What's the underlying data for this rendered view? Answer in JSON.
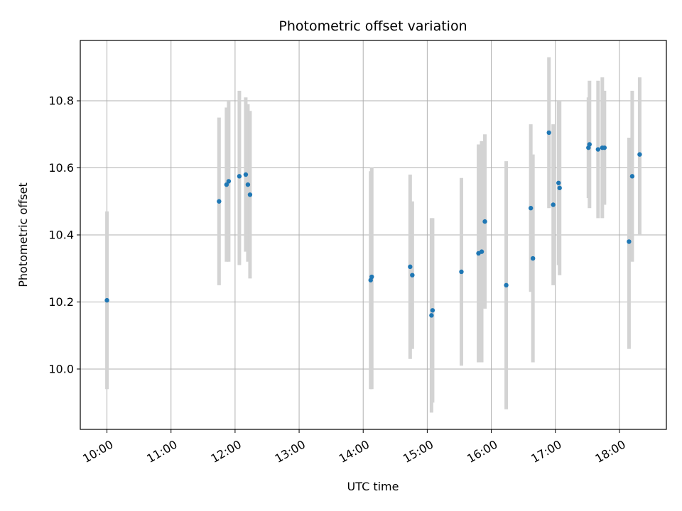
{
  "chart_data": {
    "type": "scatter",
    "title": "Photometric offset variation",
    "xlabel": "UTC time",
    "ylabel": "Photometric offset",
    "x_is_time": true,
    "xlim": [
      "09:35",
      "18:44"
    ],
    "ylim": [
      9.82,
      10.98
    ],
    "x_ticks": [
      "10:00",
      "11:00",
      "12:00",
      "13:00",
      "14:00",
      "15:00",
      "16:00",
      "17:00",
      "18:00"
    ],
    "y_ticks": [
      10.0,
      10.2,
      10.4,
      10.6,
      10.8
    ],
    "y_tick_labels": [
      "10.0",
      "10.2",
      "10.4",
      "10.6",
      "10.8"
    ],
    "grid": true,
    "point_color": "#1f77b4",
    "errorbar_color": "#d3d3d3",
    "points": [
      {
        "t": "10:00",
        "y": 10.205,
        "lo": 9.94,
        "hi": 10.47
      },
      {
        "t": "11:45",
        "y": 10.5,
        "lo": 10.25,
        "hi": 10.75
      },
      {
        "t": "11:52",
        "y": 10.55,
        "lo": 10.32,
        "hi": 10.78
      },
      {
        "t": "11:54",
        "y": 10.56,
        "lo": 10.32,
        "hi": 10.8
      },
      {
        "t": "12:04",
        "y": 10.575,
        "lo": 10.31,
        "hi": 10.83
      },
      {
        "t": "12:10",
        "y": 10.58,
        "lo": 10.35,
        "hi": 10.81
      },
      {
        "t": "12:12",
        "y": 10.55,
        "lo": 10.32,
        "hi": 10.79
      },
      {
        "t": "12:14",
        "y": 10.52,
        "lo": 10.27,
        "hi": 10.77
      },
      {
        "t": "14:07",
        "y": 10.265,
        "lo": 9.94,
        "hi": 10.59
      },
      {
        "t": "14:08",
        "y": 10.275,
        "lo": 9.94,
        "hi": 10.6
      },
      {
        "t": "14:44",
        "y": 10.305,
        "lo": 10.03,
        "hi": 10.58
      },
      {
        "t": "14:46",
        "y": 10.28,
        "lo": 10.06,
        "hi": 10.5
      },
      {
        "t": "15:04",
        "y": 10.16,
        "lo": 9.87,
        "hi": 10.45
      },
      {
        "t": "15:05",
        "y": 10.175,
        "lo": 9.9,
        "hi": 10.45
      },
      {
        "t": "15:32",
        "y": 10.29,
        "lo": 10.01,
        "hi": 10.57
      },
      {
        "t": "15:48",
        "y": 10.345,
        "lo": 10.02,
        "hi": 10.67
      },
      {
        "t": "15:51",
        "y": 10.35,
        "lo": 10.02,
        "hi": 10.68
      },
      {
        "t": "15:54",
        "y": 10.44,
        "lo": 10.18,
        "hi": 10.7
      },
      {
        "t": "16:14",
        "y": 10.25,
        "lo": 9.88,
        "hi": 10.62
      },
      {
        "t": "16:37",
        "y": 10.48,
        "lo": 10.23,
        "hi": 10.73
      },
      {
        "t": "16:39",
        "y": 10.33,
        "lo": 10.02,
        "hi": 10.64
      },
      {
        "t": "16:54",
        "y": 10.705,
        "lo": 10.48,
        "hi": 10.93
      },
      {
        "t": "16:58",
        "y": 10.49,
        "lo": 10.25,
        "hi": 10.73
      },
      {
        "t": "17:03",
        "y": 10.555,
        "lo": 10.31,
        "hi": 10.8
      },
      {
        "t": "17:04",
        "y": 10.54,
        "lo": 10.28,
        "hi": 10.8
      },
      {
        "t": "17:31",
        "y": 10.66,
        "lo": 10.51,
        "hi": 10.81
      },
      {
        "t": "17:32",
        "y": 10.67,
        "lo": 10.48,
        "hi": 10.86
      },
      {
        "t": "17:40",
        "y": 10.655,
        "lo": 10.45,
        "hi": 10.86
      },
      {
        "t": "17:44",
        "y": 10.66,
        "lo": 10.45,
        "hi": 10.87
      },
      {
        "t": "17:46",
        "y": 10.66,
        "lo": 10.49,
        "hi": 10.83
      },
      {
        "t": "18:09",
        "y": 10.38,
        "lo": 10.06,
        "hi": 10.69
      },
      {
        "t": "18:12",
        "y": 10.575,
        "lo": 10.32,
        "hi": 10.83
      },
      {
        "t": "18:19",
        "y": 10.64,
        "lo": 10.4,
        "hi": 10.87
      }
    ]
  }
}
